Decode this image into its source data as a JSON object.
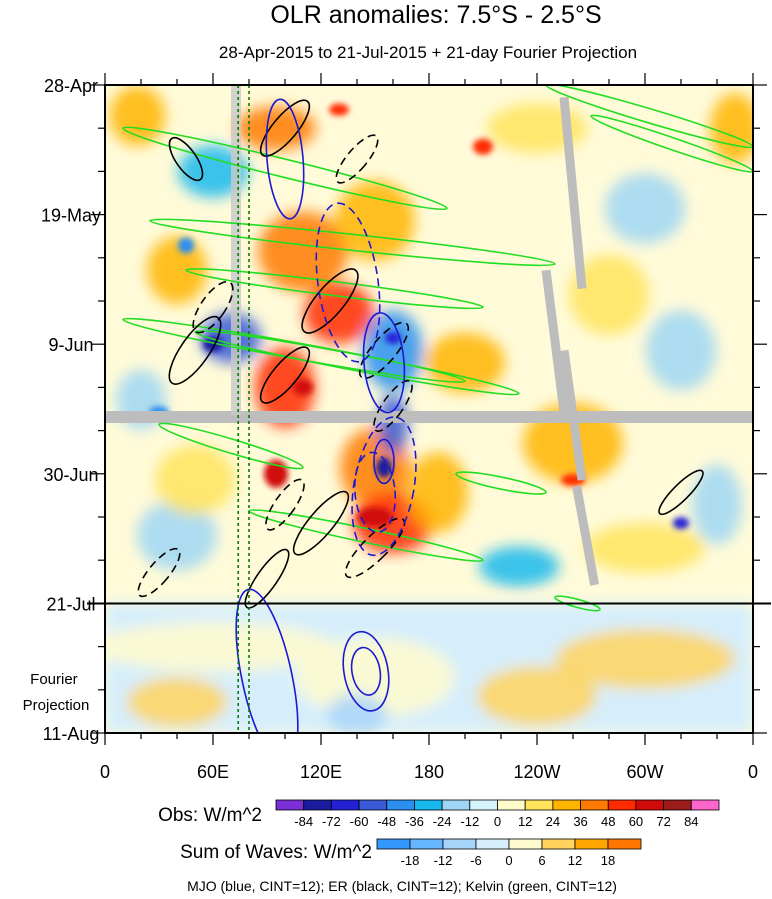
{
  "chart_data": {
    "type": "heatmap",
    "title": "OLR anomalies: 7.5°S - 2.5°S",
    "subtitle": "28-Apr-2015 to 21-Jul-2015 + 21-day Fourier Projection",
    "x_axis": {
      "ticks": [
        "0",
        "60E",
        "120E",
        "180",
        "120W",
        "60W",
        "0"
      ],
      "tick_values_deg_east": [
        0,
        60,
        120,
        180,
        240,
        300,
        360
      ],
      "range": [
        0,
        360
      ]
    },
    "y_axis": {
      "ticks": [
        "28-Apr",
        "19-May",
        "9-Jun",
        "30-Jun",
        "21-Jul",
        "11-Aug"
      ],
      "range": [
        "2015-04-28",
        "2015-08-11"
      ],
      "inverted": true
    },
    "projection_start": "2015-07-21",
    "projection_label": "Fourier Projection",
    "colorbar_obs": {
      "label": "Obs: W/m^2",
      "levels": [
        -84,
        -72,
        -60,
        -48,
        -36,
        -24,
        -12,
        0,
        12,
        24,
        36,
        48,
        60,
        72,
        84
      ],
      "colors": [
        "#7b2fd6",
        "#1b1ba0",
        "#2222d4",
        "#3a5ad8",
        "#2b8ff0",
        "#19b8ef",
        "#9fd6f5",
        "#d6f4fb",
        "#fffccc",
        "#ffe45c",
        "#ffb400",
        "#ff7a00",
        "#ff2a00",
        "#d10b0b",
        "#9c1b1b",
        "#ff66cc"
      ]
    },
    "colorbar_waves": {
      "label": "Sum of Waves: W/m^2",
      "levels": [
        -18,
        -12,
        -6,
        0,
        6,
        12,
        18
      ],
      "colors": [
        "#3399ff",
        "#66b5ff",
        "#a6d4fa",
        "#d6eefc",
        "#fffacd",
        "#ffd35c",
        "#ffa500",
        "#ff7700"
      ]
    },
    "legend": "MJO (blue, CINT=12); ER (black, CINT=12); Kelvin (green, CINT=12)",
    "series": [
      {
        "name": "MJO",
        "color": "#1a1ad4"
      },
      {
        "name": "ER",
        "color": "#000000"
      },
      {
        "name": "Kelvin",
        "color": "#22dd22"
      }
    ],
    "grid": false
  }
}
